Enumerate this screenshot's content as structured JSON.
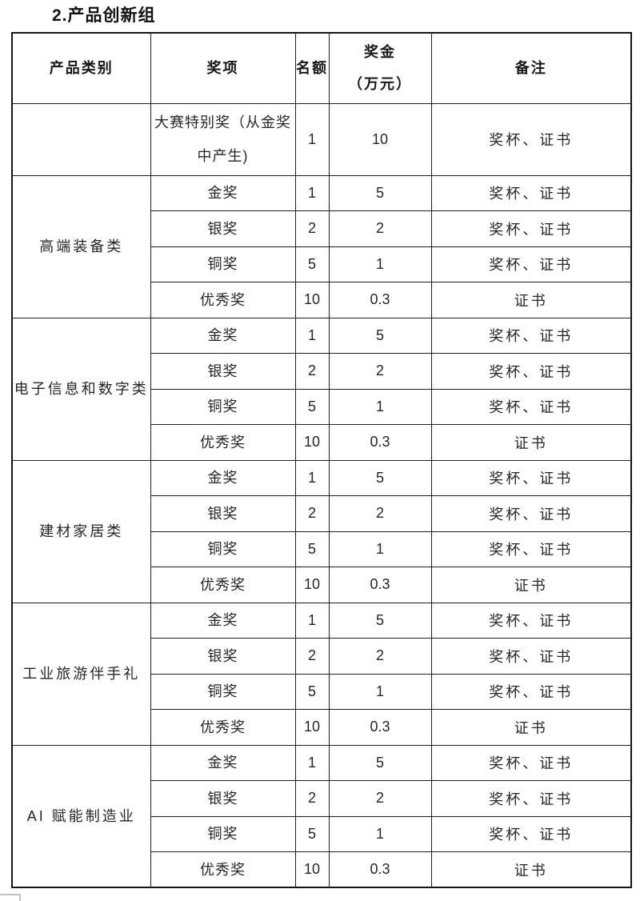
{
  "page": {
    "title": "2.产品创新组"
  },
  "table": {
    "headers": {
      "category": "产品类别",
      "award": "奖项",
      "quota": "名额",
      "prize_line1": "奖金",
      "prize_line2": "（万元）",
      "remark": "备注"
    },
    "special_row": {
      "category": "",
      "award": "大赛特别奖（从金奖中产生)",
      "quota": "1",
      "prize": "10",
      "remark": "奖杯、证书"
    },
    "groups": [
      {
        "category": "高端装备类",
        "rows": [
          {
            "award": "金奖",
            "quota": "1",
            "prize": "5",
            "remark": "奖杯、证书"
          },
          {
            "award": "银奖",
            "quota": "2",
            "prize": "2",
            "remark": "奖杯、证书"
          },
          {
            "award": "铜奖",
            "quota": "5",
            "prize": "1",
            "remark": "奖杯、证书"
          },
          {
            "award": "优秀奖",
            "quota": "10",
            "prize": "0.3",
            "remark": "证书"
          }
        ]
      },
      {
        "category": "电子信息和数字类",
        "rows": [
          {
            "award": "金奖",
            "quota": "1",
            "prize": "5",
            "remark": "奖杯、证书"
          },
          {
            "award": "银奖",
            "quota": "2",
            "prize": "2",
            "remark": "奖杯、证书"
          },
          {
            "award": "铜奖",
            "quota": "5",
            "prize": "1",
            "remark": "奖杯、证书"
          },
          {
            "award": "优秀奖",
            "quota": "10",
            "prize": "0.3",
            "remark": "证书"
          }
        ]
      },
      {
        "category": "建材家居类",
        "rows": [
          {
            "award": "金奖",
            "quota": "1",
            "prize": "5",
            "remark": "奖杯、证书"
          },
          {
            "award": "银奖",
            "quota": "2",
            "prize": "2",
            "remark": "奖杯、证书"
          },
          {
            "award": "铜奖",
            "quota": "5",
            "prize": "1",
            "remark": "奖杯、证书"
          },
          {
            "award": "优秀奖",
            "quota": "10",
            "prize": "0.3",
            "remark": "证书"
          }
        ]
      },
      {
        "category": "工业旅游伴手礼",
        "rows": [
          {
            "award": "金奖",
            "quota": "1",
            "prize": "5",
            "remark": "奖杯、证书"
          },
          {
            "award": "银奖",
            "quota": "2",
            "prize": "2",
            "remark": "奖杯、证书"
          },
          {
            "award": "铜奖",
            "quota": "5",
            "prize": "1",
            "remark": "奖杯、证书"
          },
          {
            "award": "优秀奖",
            "quota": "10",
            "prize": "0.3",
            "remark": "证书"
          }
        ]
      },
      {
        "category": "AI 赋能制造业",
        "rows": [
          {
            "award": "金奖",
            "quota": "1",
            "prize": "5",
            "remark": "奖杯、证书"
          },
          {
            "award": "银奖",
            "quota": "2",
            "prize": "2",
            "remark": "奖杯、证书"
          },
          {
            "award": "铜奖",
            "quota": "5",
            "prize": "1",
            "remark": "奖杯、证书"
          },
          {
            "award": "优秀奖",
            "quota": "10",
            "prize": "0.3",
            "remark": "证书"
          }
        ]
      }
    ]
  },
  "colors": {
    "border": "#1e1e1e",
    "text": "#262626",
    "background": "#ffffff",
    "artifact_border": "#c2c2c2"
  }
}
